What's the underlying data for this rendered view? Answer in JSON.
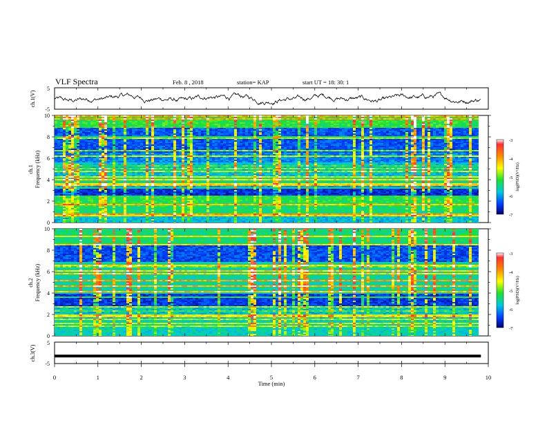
{
  "header": {
    "title": "VLF Spectra",
    "date": "Feb. 8 , 2018",
    "station": "station= KAP",
    "start_time": "start  UT =   18: 30: 1"
  },
  "chart_data": [
    {
      "type": "line",
      "ylabel": "ch.1(V)",
      "ylim": [
        -5,
        5
      ],
      "yticks": [
        "5",
        "-5"
      ],
      "x_range_min": [
        0,
        9.83
      ],
      "description_values": "noisy waveform fluctuating roughly between -2 and +2 V around 0",
      "line_color": "#000000"
    },
    {
      "type": "heatmap",
      "ylabel_line1": "ch.1",
      "ylabel_line2": "Frequency  (kHz)",
      "ylim": [
        0,
        10
      ],
      "yticks": [
        "0",
        "2",
        "4",
        "6",
        "8",
        "10"
      ],
      "x_range_min": [
        0,
        9.83
      ],
      "colorbar": {
        "label": "log(PSD)(V²/Hz)",
        "range": [
          -7,
          -3
        ],
        "ticks": [
          "-3",
          "-4",
          "-5",
          "-6",
          "-7"
        ]
      }
    },
    {
      "type": "heatmap",
      "ylabel_line1": "ch.2",
      "ylabel_line2": "Frequency  (kHz)",
      "ylim": [
        0,
        10
      ],
      "yticks": [
        "0",
        "2",
        "4",
        "6",
        "8",
        "10"
      ],
      "x_range_min": [
        0,
        9.83
      ],
      "colorbar": {
        "label": "log(PSD)(V²/Hz)",
        "range": [
          -7,
          -3
        ],
        "ticks": [
          "-3",
          "-4",
          "-5",
          "-6",
          "-7"
        ]
      }
    },
    {
      "type": "line",
      "ylabel": "ch.3(V)",
      "ylim": [
        -5,
        5
      ],
      "yticks": [
        "5",
        "-5"
      ],
      "x_range_min": [
        0,
        9.83
      ],
      "constant_value": -1.5,
      "line_color": "#000000"
    }
  ],
  "xaxis": {
    "label": "Time  (min)",
    "xlim": [
      0,
      10
    ],
    "ticks": [
      "0",
      "1",
      "2",
      "3",
      "4",
      "5",
      "6",
      "7",
      "8",
      "9",
      "10"
    ]
  }
}
